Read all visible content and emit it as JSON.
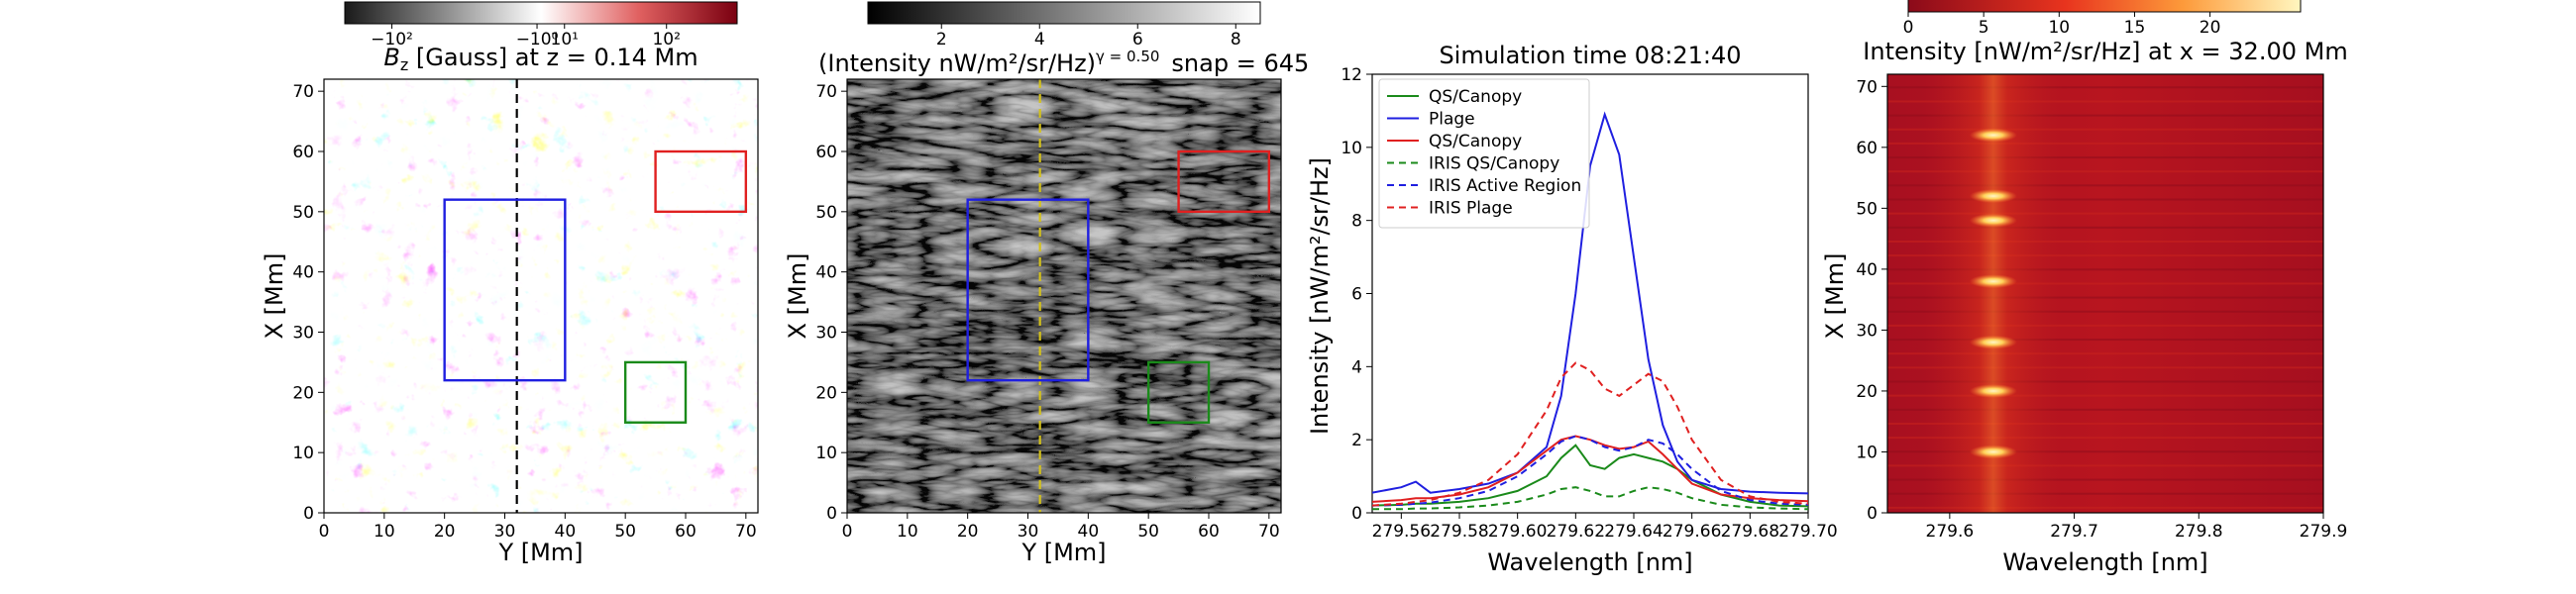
{
  "chart_data": [
    {
      "type": "heatmap",
      "name": "bz-map",
      "colorbar": {
        "ticks": [
          "−10²",
          "−10⁰",
          "10¹",
          "10²"
        ],
        "cmap": "gray-white-red"
      },
      "title": "B_z [Gauss] at z = 0.14 Mm",
      "title_parts": {
        "symbol": "B",
        "sub": "z",
        "rest": " [Gauss] at z = 0.14 Mm"
      },
      "xlabel": "Y [Mm]",
      "ylabel": "X [Mm]",
      "xlim": [
        0,
        72
      ],
      "ylim": [
        0,
        72
      ],
      "xticks": [
        0,
        10,
        20,
        30,
        40,
        50,
        60,
        70
      ],
      "yticks": [
        0,
        10,
        20,
        30,
        40,
        50,
        60,
        70
      ],
      "cut_line": {
        "y_value": 32,
        "color": "#000000",
        "style": "dashed"
      },
      "boxes": [
        {
          "name": "plage-box",
          "color": "#1f1fe0",
          "x0": 20,
          "x1": 40,
          "y0": 22,
          "y1": 52
        },
        {
          "name": "qs-canopy-box-red",
          "color": "#e02020",
          "x0": 55,
          "x1": 70,
          "y0": 50,
          "y1": 60
        },
        {
          "name": "qs-canopy-box-green",
          "color": "#1a8a1a",
          "x0": 50,
          "x1": 60,
          "y0": 15,
          "y1": 25
        }
      ]
    },
    {
      "type": "heatmap",
      "name": "intensity-map",
      "colorbar": {
        "ticks": [
          "2",
          "4",
          "6",
          "8"
        ],
        "range": [
          0.5,
          8.5
        ],
        "cmap": "gray"
      },
      "title": "(Intensity nW/m²/sr/Hz)^γ=0.50  snap = 645",
      "title_parts": {
        "main": "(Intensity nW/m²/sr/Hz)",
        "sup": "γ = 0.50",
        "snap": "snap = 645"
      },
      "xlabel": "Y [Mm]",
      "ylabel": "X [Mm]",
      "xlim": [
        0,
        72
      ],
      "ylim": [
        0,
        72
      ],
      "xticks": [
        0,
        10,
        20,
        30,
        40,
        50,
        60,
        70
      ],
      "yticks": [
        0,
        10,
        20,
        30,
        40,
        50,
        60,
        70
      ],
      "cut_line": {
        "y_value": 32,
        "color": "#d4c21a",
        "style": "dashed"
      },
      "boxes": [
        {
          "name": "plage-box",
          "color": "#1f1fe0",
          "x0": 20,
          "x1": 40,
          "y0": 22,
          "y1": 52
        },
        {
          "name": "qs-canopy-box-red",
          "color": "#e02020",
          "x0": 55,
          "x1": 70,
          "y0": 50,
          "y1": 60
        },
        {
          "name": "qs-canopy-box-green",
          "color": "#1a8a1a",
          "x0": 50,
          "x1": 60,
          "y0": 15,
          "y1": 25
        }
      ]
    },
    {
      "type": "line",
      "name": "spectra",
      "title": "Simulation time 08:21:40",
      "xlabel": "Wavelength [nm]",
      "ylabel": "Intensity [nW/m²/sr/Hz]",
      "xlim": [
        279.55,
        279.7
      ],
      "ylim": [
        0,
        12
      ],
      "xticks": [
        "279.56",
        "279.58",
        "279.60",
        "279.62",
        "279.64",
        "279.66",
        "279.68",
        "279.70"
      ],
      "xtick_values": [
        279.56,
        279.58,
        279.6,
        279.62,
        279.64,
        279.66,
        279.68,
        279.7
      ],
      "yticks": [
        0,
        2,
        4,
        6,
        8,
        10,
        12
      ],
      "x": [
        279.55,
        279.56,
        279.565,
        279.57,
        279.58,
        279.59,
        279.6,
        279.61,
        279.615,
        279.62,
        279.625,
        279.63,
        279.635,
        279.64,
        279.645,
        279.65,
        279.655,
        279.66,
        279.67,
        279.68,
        279.69,
        279.7
      ],
      "series": [
        {
          "name": "QS/Canopy",
          "color": "#1a8a1a",
          "dash": "",
          "values": [
            0.2,
            0.22,
            0.25,
            0.25,
            0.3,
            0.4,
            0.6,
            1.0,
            1.5,
            1.85,
            1.3,
            1.2,
            1.5,
            1.6,
            1.5,
            1.4,
            1.2,
            0.9,
            0.5,
            0.3,
            0.2,
            0.18
          ]
        },
        {
          "name": "Plage",
          "color": "#1f1fe0",
          "dash": "",
          "values": [
            0.55,
            0.7,
            0.85,
            0.55,
            0.65,
            0.8,
            1.1,
            1.8,
            3.2,
            6.0,
            9.5,
            10.9,
            9.8,
            7.0,
            4.2,
            2.4,
            1.4,
            0.9,
            0.65,
            0.58,
            0.55,
            0.53
          ]
        },
        {
          "name": "QS/Canopy",
          "color": "#e02020",
          "dash": "",
          "values": [
            0.3,
            0.35,
            0.4,
            0.4,
            0.5,
            0.7,
            1.1,
            1.7,
            2.0,
            2.1,
            2.0,
            1.85,
            1.75,
            1.8,
            1.95,
            1.6,
            1.2,
            0.8,
            0.5,
            0.4,
            0.35,
            0.32
          ]
        },
        {
          "name": "IRIS QS/Canopy",
          "color": "#1a8a1a",
          "dash": "7 5",
          "values": [
            0.1,
            0.1,
            0.12,
            0.12,
            0.15,
            0.2,
            0.3,
            0.5,
            0.65,
            0.7,
            0.6,
            0.45,
            0.45,
            0.6,
            0.7,
            0.65,
            0.55,
            0.4,
            0.22,
            0.15,
            0.12,
            0.1
          ]
        },
        {
          "name": "IRIS Active Region",
          "color": "#1f1fe0",
          "dash": "7 5",
          "values": [
            0.2,
            0.22,
            0.25,
            0.28,
            0.4,
            0.6,
            1.0,
            1.6,
            1.95,
            2.1,
            2.0,
            1.8,
            1.7,
            1.8,
            2.0,
            1.9,
            1.6,
            1.2,
            0.6,
            0.35,
            0.25,
            0.22
          ]
        },
        {
          "name": "IRIS Plage",
          "color": "#e02020",
          "dash": "7 5",
          "values": [
            0.2,
            0.25,
            0.3,
            0.35,
            0.55,
            0.9,
            1.6,
            2.8,
            3.7,
            4.1,
            3.9,
            3.4,
            3.2,
            3.5,
            3.8,
            3.6,
            2.9,
            2.0,
            0.9,
            0.45,
            0.3,
            0.25
          ]
        }
      ]
    },
    {
      "type": "heatmap",
      "name": "spectrogram",
      "colorbar": {
        "ticks": [
          "0",
          "5",
          "10",
          "15",
          "20"
        ],
        "range": [
          0,
          26
        ],
        "cmap": "hot"
      },
      "title": "Intensity [nW/m²/sr/Hz] at x = 32.00 Mm",
      "xlabel": "Wavelength [nm]",
      "ylabel": "X [Mm]",
      "xlim": [
        279.55,
        279.9
      ],
      "ylim": [
        0,
        72
      ],
      "xticks": [
        "279.6",
        "279.7",
        "279.8",
        "279.9"
      ],
      "xtick_values": [
        279.6,
        279.7,
        279.8,
        279.9
      ],
      "yticks": [
        0,
        10,
        20,
        30,
        40,
        50,
        60,
        70
      ],
      "bright_core_nm": 279.635,
      "bright_rows_mm": [
        10,
        20,
        28,
        38,
        48,
        52,
        62
      ]
    }
  ]
}
